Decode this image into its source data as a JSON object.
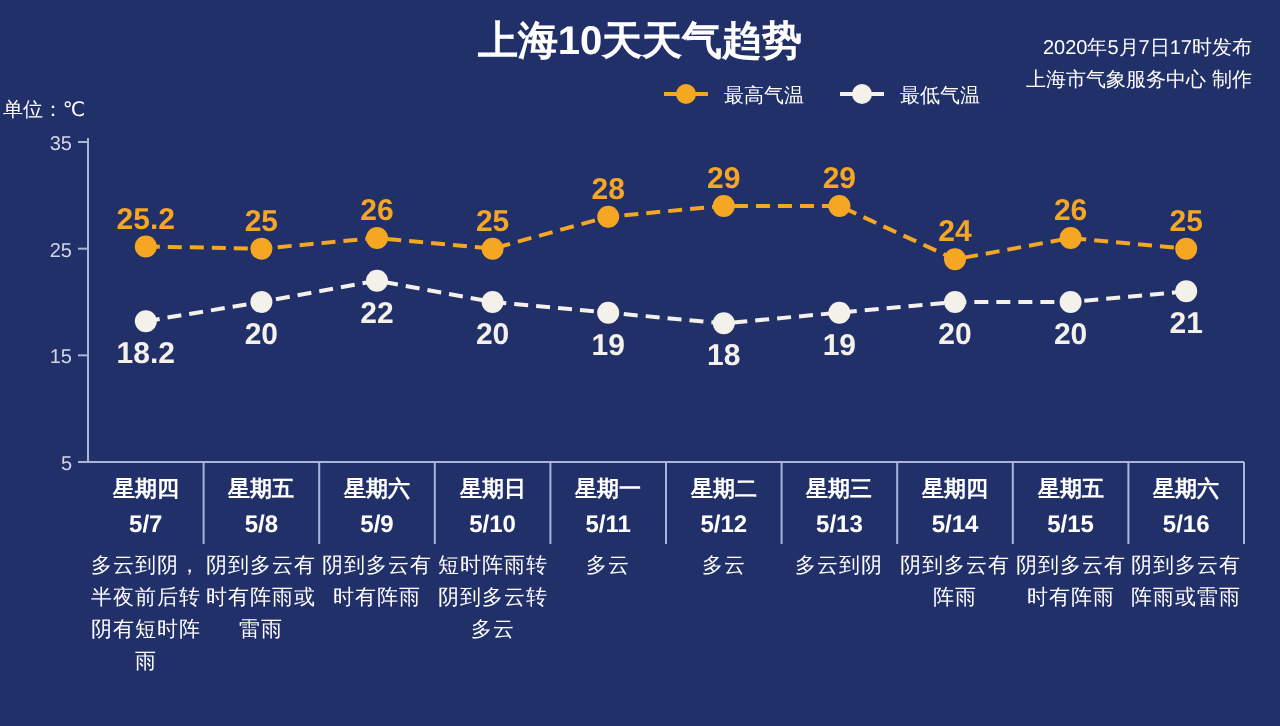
{
  "chart_data": {
    "type": "line",
    "title": "上海10天天气趋势",
    "ylabel": "单位：℃",
    "categories": [
      "星期四 5/7",
      "星期五 5/8",
      "星期六 5/9",
      "星期日 5/10",
      "星期一 5/11",
      "星期二 5/12",
      "星期三 5/13",
      "星期四 5/14",
      "星期五 5/15",
      "星期六 5/16"
    ],
    "series": [
      {
        "name": "最高气温",
        "color": "#f5a623",
        "values": [
          25.2,
          25,
          26,
          25,
          28,
          29,
          29,
          24,
          26,
          25
        ]
      },
      {
        "name": "最低气温",
        "color": "#f4f1ea",
        "values": [
          18.2,
          20,
          22,
          20,
          19,
          18,
          19,
          20,
          20,
          21
        ]
      }
    ],
    "ylim": [
      5,
      35
    ],
    "yticks": [
      5,
      15,
      25,
      35
    ],
    "data_labels": true,
    "legend": "top",
    "marker": "circle",
    "line_style": "dashed",
    "annotations": [
      "2020年5月7日17时发布",
      "上海市气象服务中心 制作",
      "多云到阴，半夜前后转阴有短时阵雨",
      "阴到多云有时有阵雨或雷雨",
      "阴到多云有时有阵雨",
      "短时阵雨转阴到多云转多云",
      "多云",
      "多云",
      "多云到阴",
      "阴到多云有阵雨",
      "阴到多云有时有阵雨",
      "阴到多云有阵雨或雷雨"
    ]
  }
}
